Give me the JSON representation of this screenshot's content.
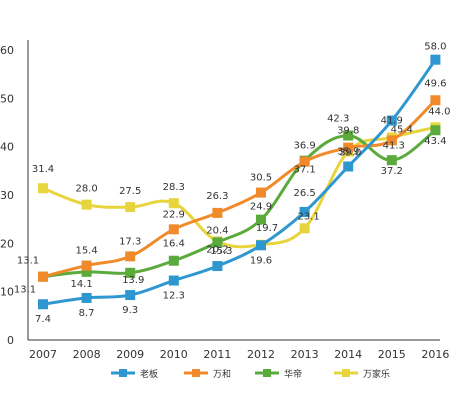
{
  "chart_data": {
    "type": "line",
    "title": "",
    "xlabel": "",
    "ylabel": "",
    "categories": [
      "2007",
      "2008",
      "2009",
      "2010",
      "2011",
      "2012",
      "2013",
      "2014",
      "2015",
      "2016"
    ],
    "ylim": [
      0,
      60
    ],
    "yticks": [
      0,
      10,
      20,
      30,
      40,
      50,
      60
    ],
    "grid": false,
    "legend_position": "bottom",
    "series": [
      {
        "name": "老板",
        "color": "#2f97d0",
        "values": [
          7.4,
          8.7,
          9.3,
          12.3,
          15.3,
          19.6,
          26.5,
          35.9,
          45.4,
          58.0
        ]
      },
      {
        "name": "万和",
        "color": "#f08a2a",
        "values": [
          13.1,
          15.4,
          17.3,
          22.9,
          26.3,
          30.5,
          36.9,
          39.8,
          41.3,
          49.6
        ]
      },
      {
        "name": "华帝",
        "color": "#5aaa3c",
        "values": [
          13.1,
          14.1,
          13.9,
          16.4,
          20.2,
          24.9,
          37.1,
          42.3,
          37.2,
          43.4
        ]
      },
      {
        "name": "万家乐",
        "color": "#e8d43c",
        "values": [
          31.4,
          28.0,
          27.5,
          28.3,
          20.4,
          19.7,
          23.1,
          39.0,
          41.9,
          44.0
        ]
      }
    ],
    "data_labels": [
      {
        "series": 0,
        "values": [
          "7.4",
          "8.7",
          "9.3",
          "12.3",
          "15.3",
          "19.6",
          "26.5",
          "35.9",
          "45.4",
          "58.0"
        ]
      },
      {
        "series": 1,
        "values": [
          "13.1",
          "15.4",
          "17.3",
          "22.9",
          "26.3",
          "30.5",
          "36.9",
          "39.8",
          "41.3",
          "49.6"
        ]
      },
      {
        "series": 2,
        "values": [
          "13.1",
          "14.1",
          "13.9",
          "16.4",
          "20.2",
          "24.9",
          "37.1",
          "42.3",
          "37.2",
          "43.4"
        ]
      },
      {
        "series": 3,
        "values": [
          "31.4",
          "28.0",
          "27.5",
          "28.3",
          "20.4",
          "19.7",
          "23.1",
          "39.0",
          "41.9",
          "44.0"
        ]
      }
    ]
  }
}
